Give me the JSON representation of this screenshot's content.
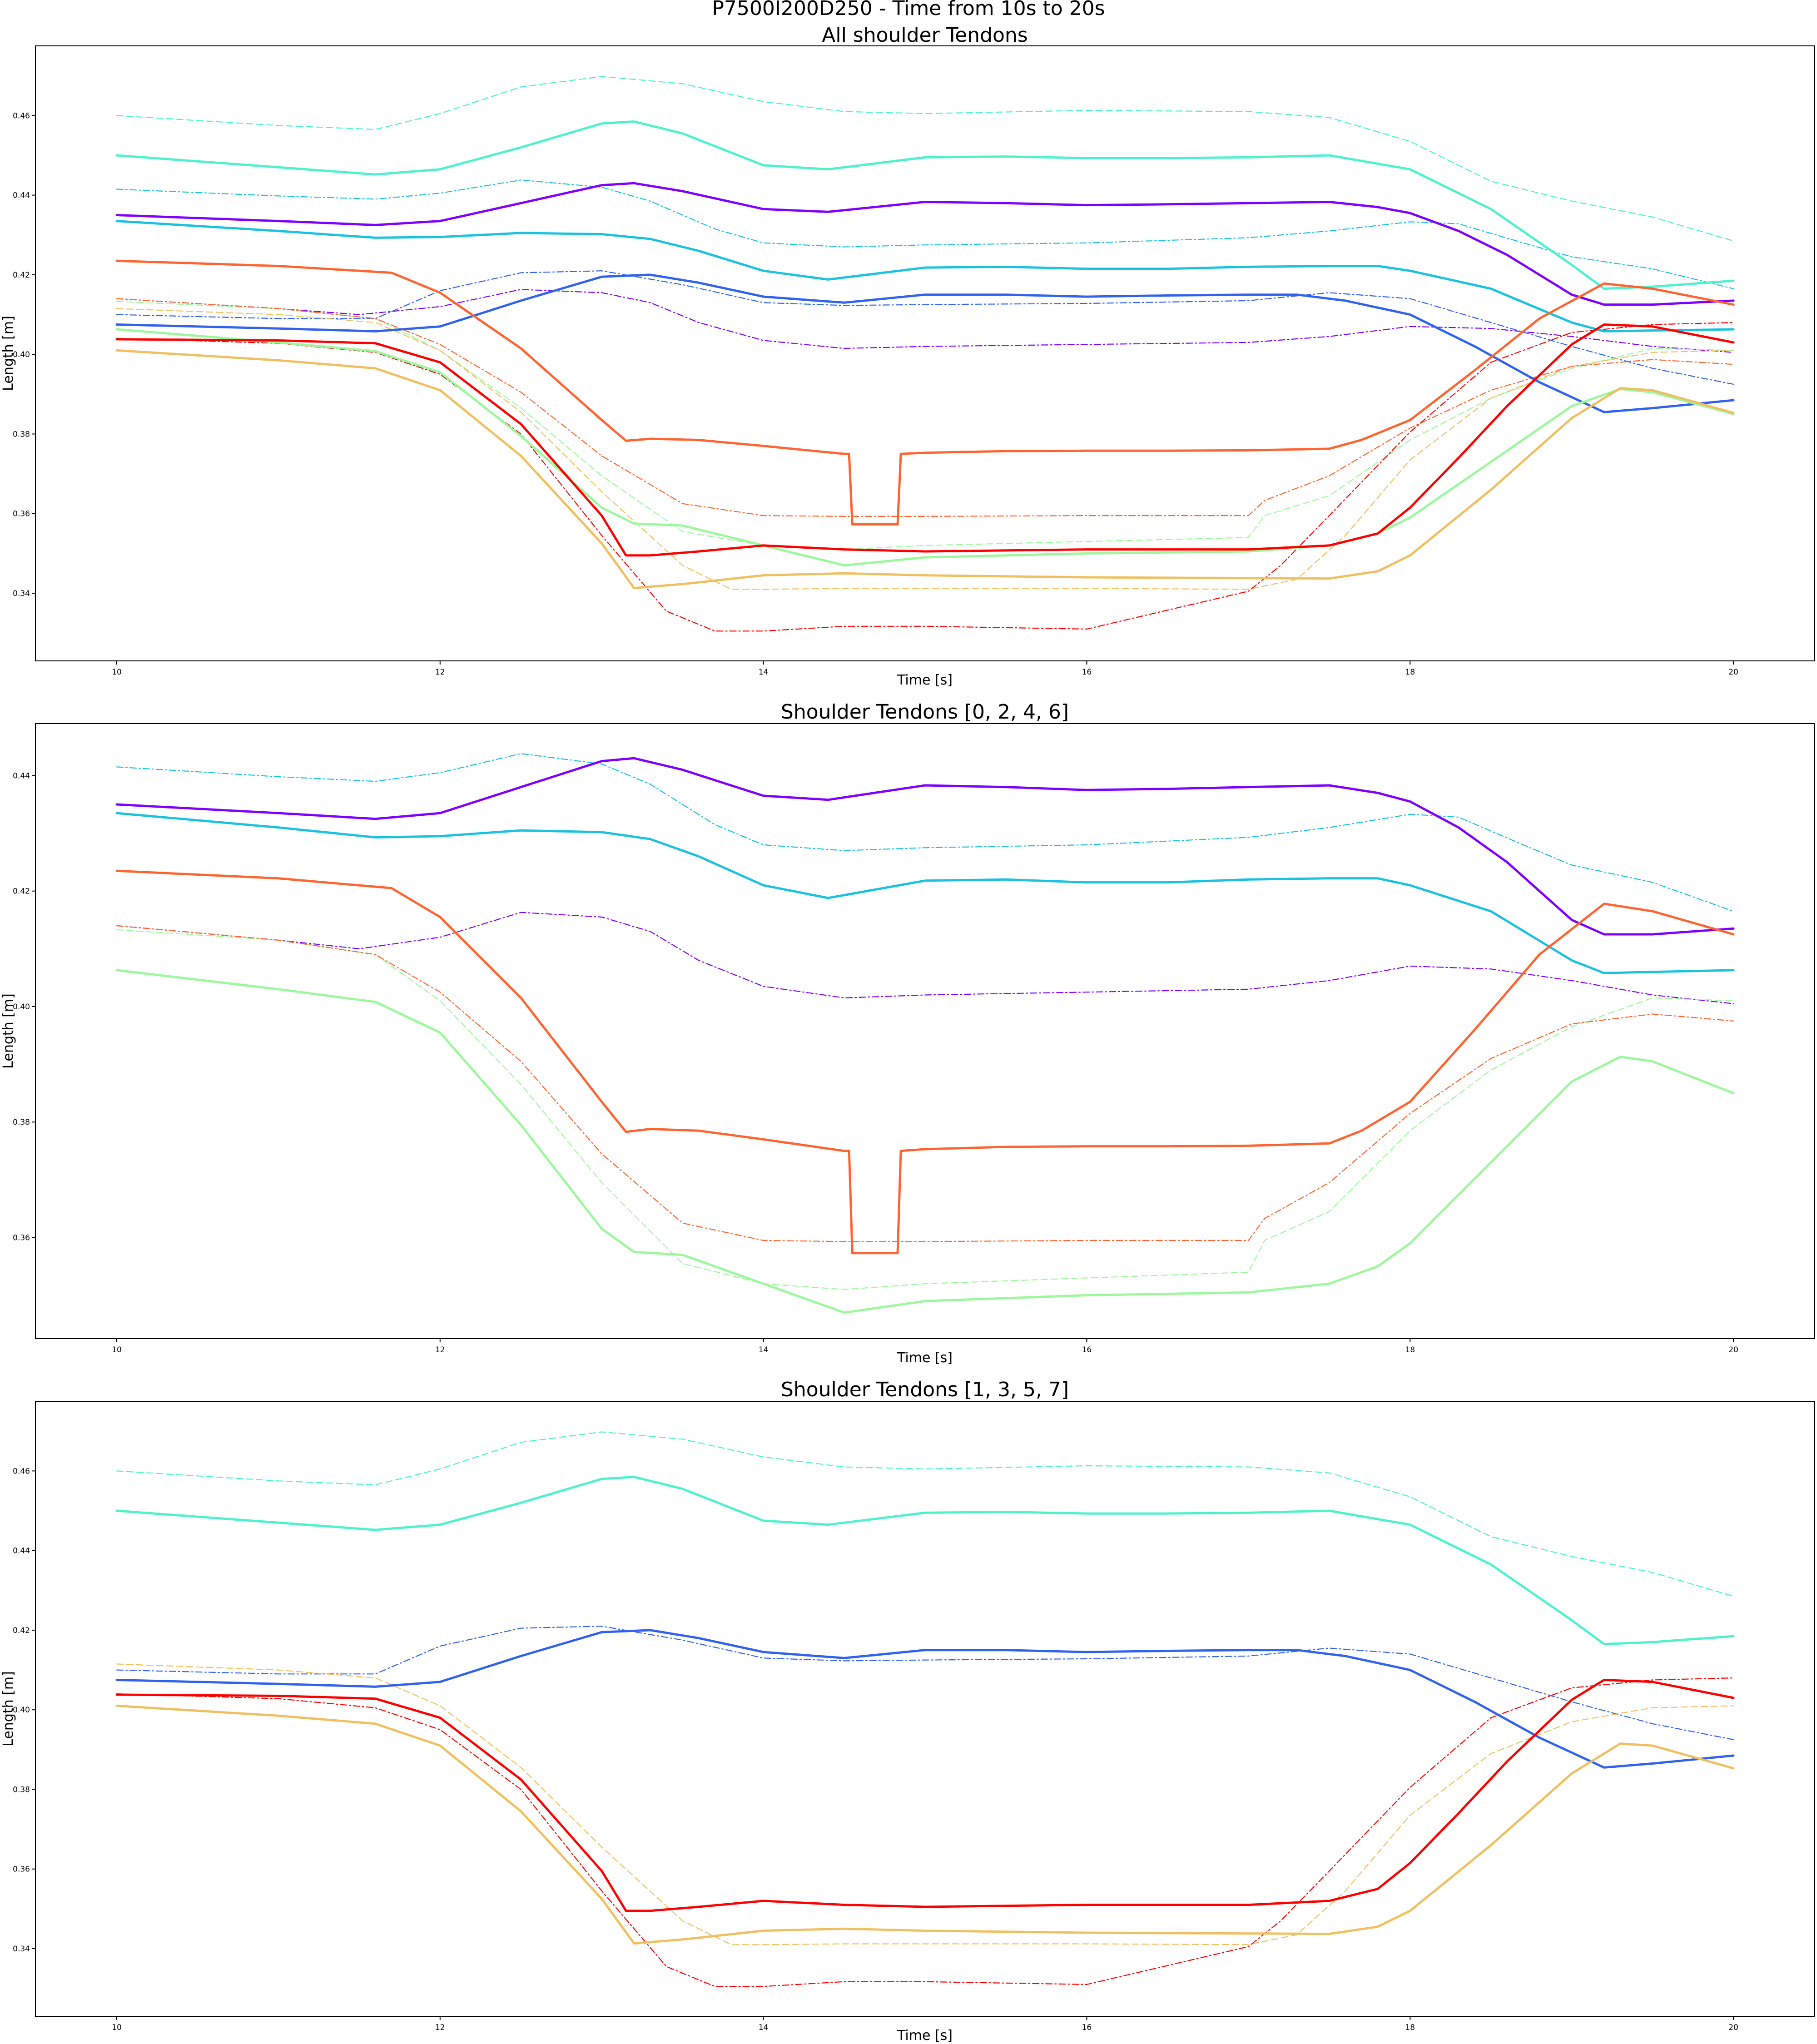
{
  "suptitle": "P7500I200D250 - Time from 10s to 20s",
  "chart_data": [
    {
      "type": "line",
      "title": "All shoulder Tendons",
      "xlabel": "Time [s]",
      "ylabel": "Length [m]",
      "xlim": [
        10,
        20
      ],
      "ylim": [
        0.323,
        0.4775
      ],
      "xticks": [
        "10",
        "12",
        "14",
        "16",
        "18",
        "20"
      ],
      "yticks": [
        "0.34",
        "0.36",
        "0.38",
        "0.40",
        "0.42",
        "0.44",
        "0.46"
      ],
      "grid": false,
      "series": [
        {
          "id": "t0",
          "style": "solid",
          "color": "#8000ff",
          "x": [
            10,
            11,
            11.6,
            12,
            12.5,
            13,
            13.2,
            13.5,
            14,
            14.4,
            15,
            15.5,
            16,
            16.5,
            17,
            17.5,
            17.8,
            18,
            18.3,
            18.6,
            19,
            19.2,
            19.5,
            20
          ],
          "y": [
            0.435,
            0.4335,
            0.4325,
            0.4335,
            0.438,
            0.4425,
            0.443,
            0.441,
            0.4365,
            0.4358,
            0.4383,
            0.438,
            0.4375,
            0.4377,
            0.438,
            0.4383,
            0.437,
            0.4355,
            0.431,
            0.425,
            0.415,
            0.4125,
            0.4125,
            0.4135
          ]
        },
        {
          "id": "t0-target",
          "style": "dashdot",
          "color": "#8000ff",
          "x": [
            10,
            11,
            11.5,
            12,
            12.5,
            13,
            13.3,
            13.6,
            14,
            14.5,
            15,
            16,
            17,
            17.5,
            18,
            18.5,
            19,
            19.5,
            20
          ],
          "y": [
            0.414,
            0.4115,
            0.41,
            0.412,
            0.4163,
            0.4155,
            0.413,
            0.408,
            0.4035,
            0.4015,
            0.402,
            0.4025,
            0.403,
            0.4045,
            0.407,
            0.4065,
            0.4045,
            0.402,
            0.4005
          ]
        },
        {
          "id": "t1",
          "style": "solid",
          "color": "#3062f0",
          "x": [
            10,
            11,
            11.6,
            12,
            12.5,
            13,
            13.3,
            13.6,
            14,
            14.5,
            15,
            15.5,
            16,
            16.5,
            17,
            17.3,
            17.6,
            18,
            18.4,
            18.8,
            19.2,
            19.5,
            20
          ],
          "y": [
            0.4075,
            0.4065,
            0.4058,
            0.407,
            0.4135,
            0.4195,
            0.42,
            0.418,
            0.4145,
            0.413,
            0.415,
            0.415,
            0.4145,
            0.4148,
            0.415,
            0.415,
            0.4135,
            0.41,
            0.402,
            0.393,
            0.3855,
            0.3865,
            0.3885
          ]
        },
        {
          "id": "t1-target",
          "style": "dashdot",
          "color": "#3062f0",
          "x": [
            10,
            11,
            11.6,
            12,
            12.5,
            13,
            13.5,
            14,
            14.5,
            15,
            16,
            17,
            17.5,
            18,
            18.5,
            19,
            19.5,
            20
          ],
          "y": [
            0.41,
            0.409,
            0.409,
            0.416,
            0.4205,
            0.421,
            0.4175,
            0.413,
            0.4123,
            0.4125,
            0.4128,
            0.4135,
            0.4155,
            0.414,
            0.408,
            0.402,
            0.3965,
            0.3925
          ]
        },
        {
          "id": "t2",
          "style": "solid",
          "color": "#18c2e0",
          "x": [
            10,
            11,
            11.6,
            12,
            12.5,
            13,
            13.3,
            13.6,
            14,
            14.4,
            15,
            15.5,
            16,
            16.5,
            17,
            17.5,
            17.8,
            18,
            18.5,
            19,
            19.2,
            19.5,
            20
          ],
          "y": [
            0.4335,
            0.431,
            0.4293,
            0.4295,
            0.4305,
            0.4302,
            0.429,
            0.426,
            0.421,
            0.4188,
            0.4218,
            0.422,
            0.4215,
            0.4215,
            0.422,
            0.4222,
            0.4222,
            0.421,
            0.4165,
            0.408,
            0.4058,
            0.406,
            0.4063
          ]
        },
        {
          "id": "t2-target",
          "style": "dashdot",
          "color": "#18c2e0",
          "x": [
            10,
            11,
            11.6,
            12,
            12.5,
            13,
            13.3,
            13.7,
            14,
            14.5,
            15,
            16,
            17,
            17.5,
            18,
            18.3,
            18.7,
            19,
            19.5,
            20
          ],
          "y": [
            0.4415,
            0.4398,
            0.439,
            0.4405,
            0.4438,
            0.442,
            0.4385,
            0.4315,
            0.428,
            0.427,
            0.4275,
            0.428,
            0.4293,
            0.431,
            0.4333,
            0.4328,
            0.428,
            0.4245,
            0.4215,
            0.4165
          ]
        },
        {
          "id": "t3",
          "style": "solid",
          "color": "#4cf2ce",
          "x": [
            10,
            11,
            11.6,
            12,
            12.5,
            13,
            13.2,
            13.5,
            14,
            14.4,
            15,
            15.5,
            16,
            16.5,
            17,
            17.5,
            18,
            18.5,
            19,
            19.2,
            19.5,
            20
          ],
          "y": [
            0.45,
            0.447,
            0.4452,
            0.4465,
            0.452,
            0.458,
            0.4585,
            0.4555,
            0.4475,
            0.4465,
            0.4495,
            0.4497,
            0.4493,
            0.4493,
            0.4495,
            0.45,
            0.4465,
            0.4365,
            0.4225,
            0.4165,
            0.417,
            0.4185
          ]
        },
        {
          "id": "t3-target",
          "style": "dashed",
          "color": "#4cf2ce",
          "x": [
            10,
            11,
            11.6,
            12,
            12.5,
            13,
            13.5,
            14,
            14.5,
            15,
            16,
            17,
            17.5,
            18,
            18.5,
            19,
            19.5,
            20
          ],
          "y": [
            0.46,
            0.4575,
            0.4565,
            0.4605,
            0.4672,
            0.4698,
            0.468,
            0.4635,
            0.461,
            0.4605,
            0.4613,
            0.461,
            0.4595,
            0.4535,
            0.4435,
            0.4385,
            0.4345,
            0.4285
          ]
        },
        {
          "id": "t4",
          "style": "solid",
          "color": "#9cf89c",
          "x": [
            10,
            11,
            11.6,
            12,
            12.5,
            13,
            13.2,
            13.5,
            14,
            14.5,
            15,
            16,
            17,
            17.5,
            17.8,
            18,
            18.5,
            19,
            19.3,
            19.5,
            20
          ],
          "y": [
            0.4063,
            0.403,
            0.4008,
            0.3955,
            0.3795,
            0.3615,
            0.3575,
            0.357,
            0.352,
            0.347,
            0.349,
            0.35,
            0.3505,
            0.352,
            0.355,
            0.359,
            0.373,
            0.387,
            0.3913,
            0.3905,
            0.385
          ]
        },
        {
          "id": "t4-target",
          "style": "dashed",
          "color": "#9cf89c",
          "x": [
            10,
            11,
            11.6,
            12,
            12.5,
            13,
            13.5,
            14,
            14.5,
            15,
            16,
            17,
            17.1,
            17.5,
            18,
            18.5,
            19,
            19.5,
            20
          ],
          "y": [
            0.4133,
            0.4115,
            0.409,
            0.401,
            0.3865,
            0.3695,
            0.3555,
            0.352,
            0.351,
            0.352,
            0.353,
            0.354,
            0.3595,
            0.3645,
            0.3785,
            0.389,
            0.3965,
            0.4015,
            0.401
          ]
        },
        {
          "id": "t5",
          "style": "solid",
          "color": "#f0c060",
          "x": [
            10,
            11,
            11.6,
            12,
            12.5,
            13,
            13.2,
            13.5,
            14,
            14.5,
            15,
            16,
            17,
            17.5,
            17.8,
            18,
            18.5,
            19,
            19.3,
            19.5,
            20
          ],
          "y": [
            0.401,
            0.3985,
            0.3965,
            0.391,
            0.3745,
            0.3525,
            0.3413,
            0.3423,
            0.3445,
            0.345,
            0.3445,
            0.344,
            0.3438,
            0.3437,
            0.3455,
            0.3495,
            0.366,
            0.384,
            0.3915,
            0.391,
            0.3853
          ]
        },
        {
          "id": "t5-target",
          "style": "dashed",
          "color": "#f0c060",
          "x": [
            10,
            11,
            11.6,
            12,
            12.5,
            13,
            13.5,
            13.8,
            14,
            14.5,
            15,
            16,
            17,
            17.3,
            17.6,
            18,
            18.5,
            19,
            19.5,
            20
          ],
          "y": [
            0.4115,
            0.41,
            0.408,
            0.401,
            0.3855,
            0.3655,
            0.347,
            0.341,
            0.341,
            0.3412,
            0.3412,
            0.3412,
            0.341,
            0.3435,
            0.3545,
            0.3735,
            0.389,
            0.397,
            0.4005,
            0.401
          ]
        },
        {
          "id": "t6",
          "style": "solid",
          "color": "#ff6430",
          "x": [
            10,
            11,
            11.7,
            12,
            12.5,
            13,
            13.15,
            13.3,
            13.6,
            14,
            14.5,
            14.53,
            14.55,
            14.83,
            14.85,
            15,
            15.5,
            16,
            16.5,
            17,
            17.5,
            17.7,
            18,
            18.4,
            18.8,
            19.2,
            19.5,
            20
          ],
          "y": [
            0.4235,
            0.4222,
            0.4205,
            0.4155,
            0.4015,
            0.3835,
            0.3783,
            0.3788,
            0.3785,
            0.377,
            0.375,
            0.375,
            0.3573,
            0.3573,
            0.375,
            0.3753,
            0.3757,
            0.3758,
            0.3758,
            0.3759,
            0.3763,
            0.3785,
            0.3835,
            0.396,
            0.409,
            0.4178,
            0.4165,
            0.4125
          ]
        },
        {
          "id": "t6-target",
          "style": "dashdot",
          "color": "#ff6430",
          "x": [
            10,
            11,
            11.6,
            12,
            12.5,
            13,
            13.5,
            14,
            14.5,
            15,
            16,
            17,
            17.1,
            17.5,
            18,
            18.5,
            19,
            19.5,
            20
          ],
          "y": [
            0.414,
            0.4115,
            0.409,
            0.4025,
            0.3905,
            0.3745,
            0.3625,
            0.3595,
            0.3593,
            0.3593,
            0.3595,
            0.3595,
            0.3633,
            0.3695,
            0.3815,
            0.391,
            0.397,
            0.3987,
            0.3975
          ]
        },
        {
          "id": "t7",
          "style": "solid",
          "color": "#ff0000",
          "x": [
            10,
            11,
            11.6,
            12,
            12.5,
            13,
            13.15,
            13.3,
            13.6,
            14,
            14.5,
            15,
            16,
            17,
            17.5,
            17.8,
            18,
            18.3,
            18.6,
            19,
            19.2,
            19.5,
            20
          ],
          "y": [
            0.4038,
            0.4035,
            0.4028,
            0.398,
            0.3825,
            0.3595,
            0.3495,
            0.3495,
            0.3505,
            0.352,
            0.351,
            0.3505,
            0.351,
            0.351,
            0.352,
            0.355,
            0.3615,
            0.374,
            0.387,
            0.4025,
            0.4075,
            0.407,
            0.403
          ]
        },
        {
          "id": "t7-target",
          "style": "dashdot",
          "color": "#ff0000",
          "x": [
            10,
            11,
            11.6,
            12,
            12.5,
            13,
            13.4,
            13.7,
            14,
            14.5,
            15,
            16,
            17,
            17.2,
            17.5,
            18,
            18.5,
            19,
            19.5,
            20
          ],
          "y": [
            0.404,
            0.4028,
            0.4005,
            0.395,
            0.38,
            0.3545,
            0.3355,
            0.3305,
            0.3305,
            0.3317,
            0.3317,
            0.331,
            0.3405,
            0.347,
            0.3595,
            0.3805,
            0.398,
            0.4055,
            0.4075,
            0.408
          ]
        }
      ]
    },
    {
      "type": "line",
      "title": "Shoulder Tendons [0, 2, 4, 6]",
      "xlabel": "Time [s]",
      "ylabel": "Length [m]",
      "xlim": [
        10,
        20
      ],
      "ylim": [
        0.3425,
        0.449
      ],
      "xticks": [
        "10",
        "12",
        "14",
        "16",
        "18",
        "20"
      ],
      "yticks": [
        "0.36",
        "0.38",
        "0.40",
        "0.42",
        "0.44"
      ],
      "grid": false,
      "series_ids": [
        "t0",
        "t0-target",
        "t2",
        "t2-target",
        "t4",
        "t4-target",
        "t6",
        "t6-target"
      ]
    },
    {
      "type": "line",
      "title": "Shoulder Tendons  [1, 3, 5, 7]",
      "xlabel": "Time [s]",
      "ylabel": "Length [m]",
      "xlim": [
        10,
        20
      ],
      "ylim": [
        0.323,
        0.4775
      ],
      "xticks": [
        "10",
        "12",
        "14",
        "16",
        "18",
        "20"
      ],
      "yticks": [
        "0.34",
        "0.36",
        "0.38",
        "0.40",
        "0.42",
        "0.44",
        "0.46"
      ],
      "grid": false,
      "series_ids": [
        "t1",
        "t1-target",
        "t3",
        "t3-target",
        "t5",
        "t5-target",
        "t7",
        "t7-target"
      ]
    }
  ]
}
